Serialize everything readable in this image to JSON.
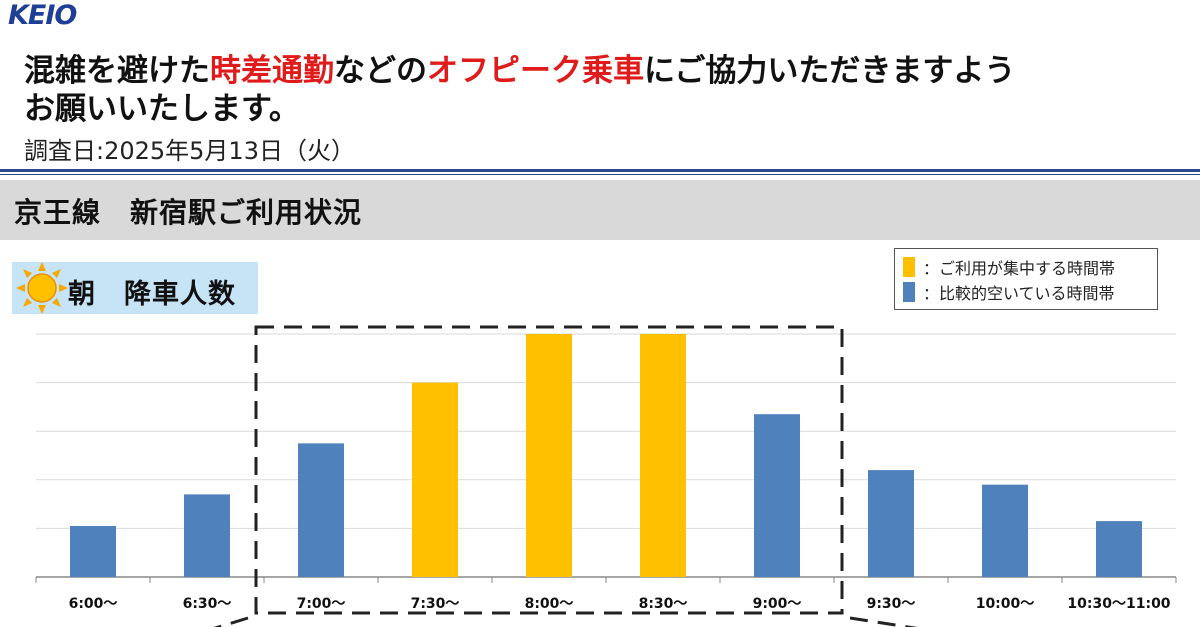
{
  "logo": "KEIO",
  "headline": {
    "line1_a": "混雑を避けた",
    "line1_b": "時差通勤",
    "line1_c": "などの",
    "line1_d": "オフピーク乗車",
    "line1_e": "にご協力いただきますよう",
    "line2": "お願いいたします。"
  },
  "survey_date": "調査日:2025年5月13日（火）",
  "section_title": "京王線　新宿駅ご利用状況",
  "badge_label": "朝　降車人数",
  "legend": [
    {
      "label": "：ご利用が集中する時間帯",
      "color": "#ffc000"
    },
    {
      "label": "：比較的空いている時間帯",
      "color": "#4f81bd"
    }
  ],
  "chart_data": {
    "type": "bar",
    "title": "",
    "xlabel": "",
    "ylabel": "",
    "ylim": [
      0,
      100
    ],
    "grid": true,
    "categories": [
      "6:00～",
      "6:30～",
      "7:00～",
      "7:30～",
      "8:00～",
      "8:30～",
      "9:00～",
      "9:30～",
      "10:00～",
      "10:30～11:00"
    ],
    "values": [
      21,
      34,
      55,
      80,
      100,
      100,
      67,
      44,
      38,
      23
    ],
    "highlighted": [
      false,
      false,
      false,
      true,
      true,
      true,
      false,
      false,
      false,
      false
    ],
    "colors": {
      "busy": "#ffc000",
      "quiet": "#4f81bd"
    },
    "highlight_box_categories": [
      "7:00～",
      "9:00～"
    ]
  }
}
